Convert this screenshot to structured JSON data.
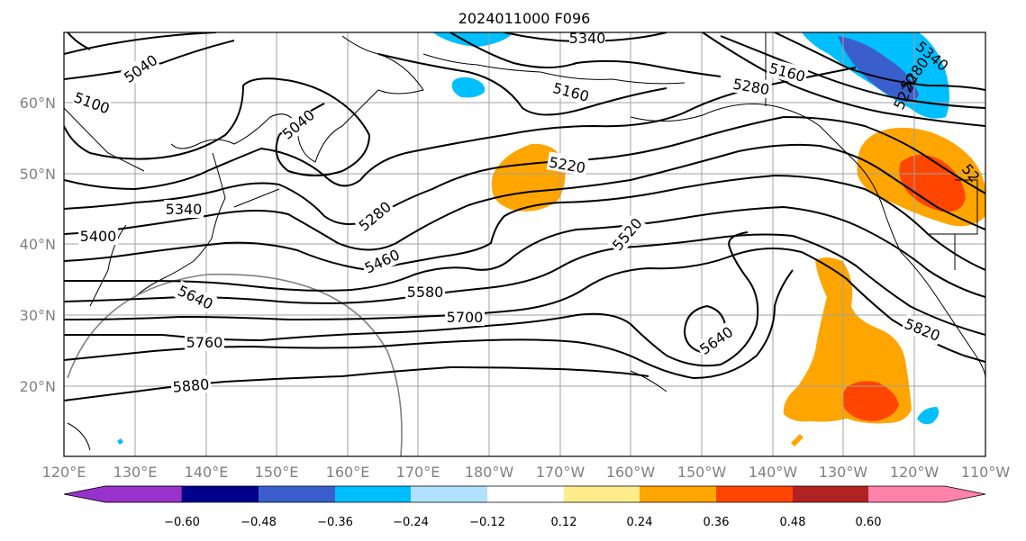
{
  "title": "2024011000 F096",
  "lat_labels": [
    "60°N",
    "50°N",
    "40°N",
    "30°N",
    "20°N"
  ],
  "lon_labels": [
    "120°E",
    "130°E",
    "140°E",
    "150°E",
    "160°E",
    "170°E",
    "180°W",
    "170°W",
    "160°W",
    "150°W",
    "140°W",
    "130°W",
    "120°W",
    "110°W"
  ],
  "colorbar": {
    "ticks": [
      "−0.60",
      "−0.48",
      "−0.36",
      "−0.24",
      "−0.12",
      "0.12",
      "0.24",
      "0.36",
      "0.48",
      "0.60"
    ],
    "colors": [
      "#9932cc",
      "#00008b",
      "#3a5fcd",
      "#00bfff",
      "#b0e2ff",
      "#ffffff",
      "#ffec8b",
      "#ffa500",
      "#ff4500",
      "#b22222",
      "#ff82ab"
    ]
  },
  "contour_labels": [
    {
      "text": "5040"
    },
    {
      "text": "5100"
    },
    {
      "text": "5040"
    },
    {
      "text": "5340"
    },
    {
      "text": "5160"
    },
    {
      "text": "5160"
    },
    {
      "text": "5280"
    },
    {
      "text": "5220"
    },
    {
      "text": "5340"
    },
    {
      "text": "5400"
    },
    {
      "text": "5280"
    },
    {
      "text": "5460"
    },
    {
      "text": "5520"
    },
    {
      "text": "5580"
    },
    {
      "text": "5640"
    },
    {
      "text": "5700"
    },
    {
      "text": "5760"
    },
    {
      "text": "5640"
    },
    {
      "text": "5820"
    },
    {
      "text": "5880"
    },
    {
      "text": "5340"
    },
    {
      "text": "5280"
    },
    {
      "text": "5220"
    },
    {
      "text": "52"
    }
  ],
  "colors": {
    "contour": "#000000",
    "grid": "#a0a0a0",
    "axis_text": "#808080"
  }
}
